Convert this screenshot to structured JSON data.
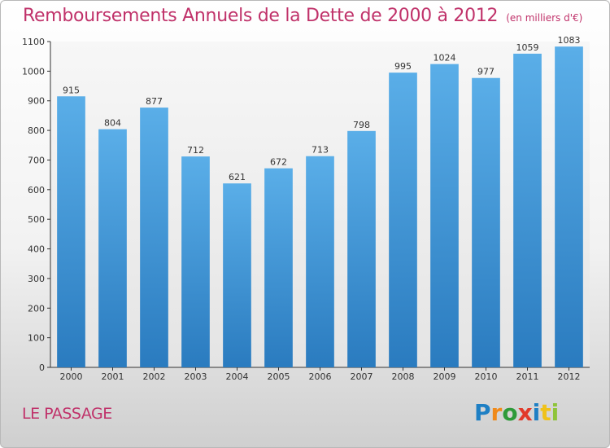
{
  "header": {
    "title": "Remboursements Annuels de la Dette de 2000 à 2012",
    "unit": "(en milliers d'€)"
  },
  "footer": {
    "subject": "LE PASSAGE",
    "logo_letters": [
      {
        "ch": "P",
        "color": "#1e7fc4"
      },
      {
        "ch": "r",
        "color": "#f08a1a"
      },
      {
        "ch": "o",
        "color": "#2e9a3a"
      },
      {
        "ch": "x",
        "color": "#e23a2a"
      },
      {
        "ch": "i",
        "color": "#1e7fc4"
      },
      {
        "ch": "t",
        "color": "#f0c21a"
      },
      {
        "ch": "i",
        "color": "#8fc43a"
      }
    ]
  },
  "chart_data": {
    "type": "bar",
    "title": "Remboursements Annuels de la Dette de 2000 à 2012",
    "subtitle": "(en milliers d'€)",
    "xlabel": "",
    "ylabel": "",
    "categories": [
      "2000",
      "2001",
      "2002",
      "2003",
      "2004",
      "2005",
      "2006",
      "2007",
      "2008",
      "2009",
      "2010",
      "2011",
      "2012"
    ],
    "values": [
      915,
      804,
      877,
      712,
      621,
      672,
      713,
      798,
      995,
      1024,
      977,
      1059,
      1083
    ],
    "ylim": [
      0,
      1100
    ],
    "yticks": [
      0,
      100,
      200,
      300,
      400,
      500,
      600,
      700,
      800,
      900,
      1000,
      1100
    ],
    "grid": false,
    "bar_color_top": "#5aaee8",
    "bar_color_bottom": "#2a7bbf"
  }
}
